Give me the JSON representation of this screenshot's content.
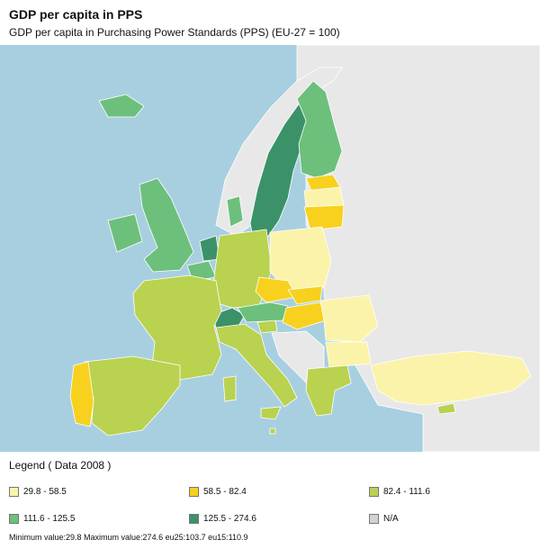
{
  "title": "GDP per capita in PPS",
  "subtitle": "GDP per capita in Purchasing Power Standards (PPS) (EU-27 = 100)",
  "legend": {
    "title": "Legend ( Data 2008 )",
    "items": [
      {
        "label": "29.8 - 58.5",
        "color": "#fbf3a9"
      },
      {
        "label": "58.5 - 82.4",
        "color": "#f7d11d"
      },
      {
        "label": "82.4 - 111.6",
        "color": "#b9d24f"
      },
      {
        "label": "111.6 - 125.5",
        "color": "#6cc07c"
      },
      {
        "label": "125.5 - 274.6",
        "color": "#3b9268"
      },
      {
        "label": "N/A",
        "color": "#d2d2d2"
      }
    ]
  },
  "footer": "Minimum value:29.8 Maximum value:274.6 eu25:103.7 eu15:110.9",
  "colors": {
    "sea": "#a8cfe0",
    "non_eu": "#e8e8e8",
    "border": "#ffffff"
  }
}
